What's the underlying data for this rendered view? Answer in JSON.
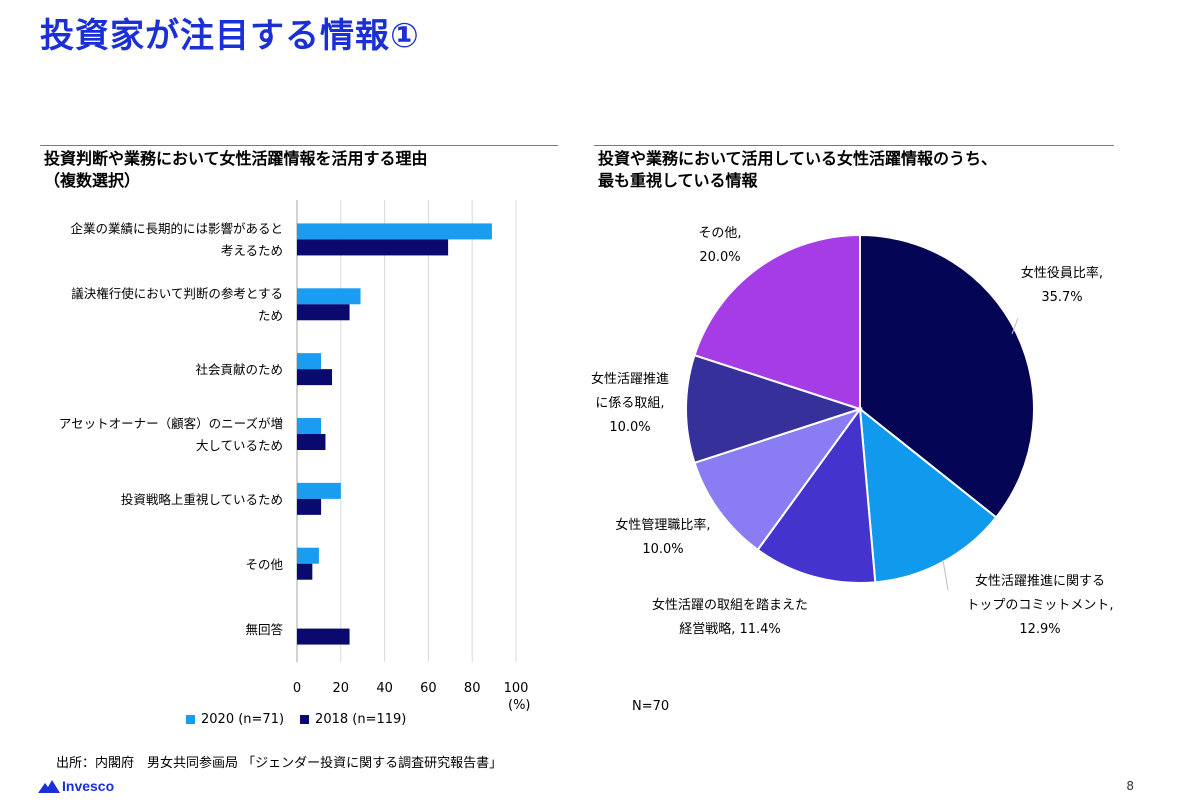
{
  "page": {
    "title": "投資家が注目する情報①",
    "source": "出所：内閣府　男女共同参画局 「ジェンダー投資に関する調査研究報告書」",
    "page_number": "8",
    "logo_text": "Invesco"
  },
  "colors": {
    "title": "#1a2fd6",
    "series_2020": "#1a9cf0",
    "series_2018": "#0a0a6e",
    "pie": [
      "#050556",
      "#1199ee",
      "#4433cc",
      "#8a7cf2",
      "#35309a",
      "#a63ce6"
    ]
  },
  "bar_panel": {
    "title_line1": "投資判断や業務において女性活躍情報を活用する理由",
    "title_line2": "（複数選択）",
    "unit": "(%)"
  },
  "pie_panel": {
    "title_line1": "投資や業務において活用している女性活躍情報のうち、",
    "title_line2": "最も重視している情報",
    "n_note": "N=70"
  },
  "chart_data": [
    {
      "type": "bar",
      "orientation": "horizontal",
      "categories": [
        [
          "企業の業績に長期的には影響があると",
          "考えるため"
        ],
        [
          "議決権行使において判断の参考とする",
          "ため"
        ],
        [
          "社会貢献のため"
        ],
        [
          "アセットオーナー（顧客）のニーズが増",
          "大しているため"
        ],
        [
          "投資戦略上重視しているため"
        ],
        [
          "その他"
        ],
        [
          "無回答"
        ]
      ],
      "series": [
        {
          "name": "2020 (n=71)",
          "values": [
            89,
            29,
            11,
            11,
            20,
            10,
            0
          ]
        },
        {
          "name": "2018 (n=119)",
          "values": [
            69,
            24,
            16,
            13,
            11,
            7,
            24
          ]
        }
      ],
      "xlim": [
        0,
        100
      ],
      "xticks": [
        "0",
        "20",
        "40",
        "60",
        "80",
        "100"
      ],
      "grid": true,
      "legend": "bottom"
    },
    {
      "type": "pie",
      "slices": [
        {
          "label_lines": [
            "女性役員比率,",
            "35.7%"
          ],
          "value": 35.7
        },
        {
          "label_lines": [
            "女性活躍推進に関する",
            "トップのコミットメント,",
            "12.9%"
          ],
          "value": 12.9
        },
        {
          "label_lines": [
            "女性活躍の取組を踏まえた",
            "経営戦略, 11.4%"
          ],
          "value": 11.4
        },
        {
          "label_lines": [
            "女性管理職比率,",
            "10.0%"
          ],
          "value": 10.0
        },
        {
          "label_lines": [
            "女性活躍推進",
            "に係る取組,",
            "10.0%"
          ],
          "value": 10.0
        },
        {
          "label_lines": [
            "その他,",
            "20.0%"
          ],
          "value": 20.0
        }
      ]
    }
  ]
}
